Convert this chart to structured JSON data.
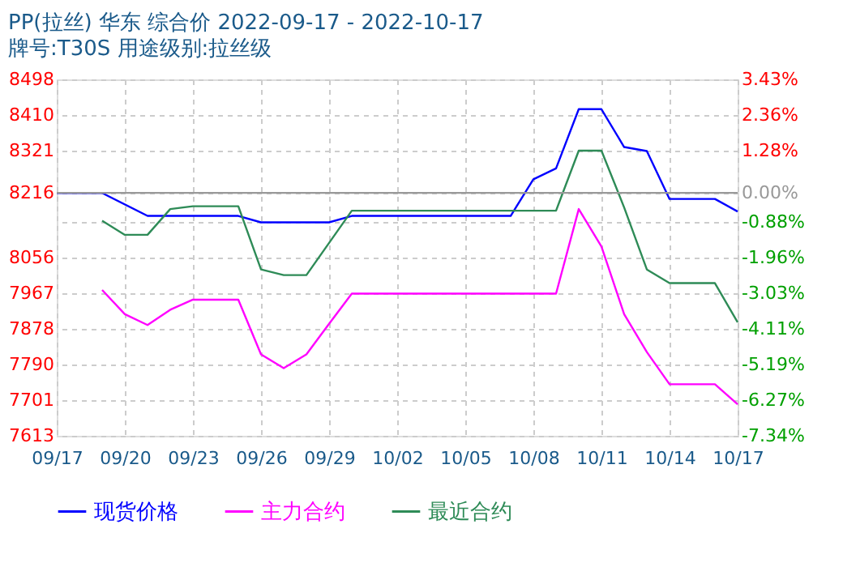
{
  "chart_data": {
    "type": "line",
    "title": "PP(拉丝) 华东 综合价 2022-09-17 - 2022-10-17",
    "subtitle": "牌号:T30S 用途级别:拉丝级",
    "series": [
      {
        "name": "现货价格",
        "color": "#0000ff",
        "x": [
          "2022-09-17",
          "2022-09-19",
          "2022-09-21",
          "2022-09-25",
          "2022-09-26",
          "2022-09-29",
          "2022-09-30",
          "2022-10-07",
          "2022-10-08",
          "2022-10-09",
          "2022-10-10",
          "2022-10-11",
          "2022-10-12",
          "2022-10-13",
          "2022-10-14",
          "2022-10-16",
          "2022-10-17"
        ],
        "values": [
          8216,
          8216,
          8159,
          8159,
          8143,
          8143,
          8159,
          8159,
          8250,
          8277,
          8424,
          8424,
          8330,
          8320,
          8201,
          8201,
          8170
        ]
      },
      {
        "name": "主力合约",
        "color": "#ff00ff",
        "x": [
          "2022-09-19",
          "2022-09-20",
          "2022-09-21",
          "2022-09-22",
          "2022-09-23",
          "2022-09-25",
          "2022-09-26",
          "2022-09-27",
          "2022-09-28",
          "2022-09-29",
          "2022-09-30",
          "2022-10-09",
          "2022-10-10",
          "2022-10-11",
          "2022-10-12",
          "2022-10-13",
          "2022-10-14",
          "2022-10-16",
          "2022-10-17"
        ],
        "values": [
          7975,
          7915,
          7888,
          7926,
          7951,
          7951,
          7815,
          7781,
          7815,
          7891,
          7966,
          7966,
          8176,
          8083,
          7915,
          7821,
          7741,
          7741,
          7691
        ]
      },
      {
        "name": "最近合约",
        "color": "#2e8b57",
        "x": [
          "2022-09-19",
          "2022-09-20",
          "2022-09-21",
          "2022-09-22",
          "2022-09-23",
          "2022-09-25",
          "2022-09-26",
          "2022-09-27",
          "2022-09-28",
          "2022-09-30",
          "2022-10-09",
          "2022-10-10",
          "2022-10-11",
          "2022-10-12",
          "2022-10-13",
          "2022-10-14",
          "2022-10-16",
          "2022-10-17"
        ],
        "values": [
          8147,
          8112,
          8112,
          8176,
          8183,
          8183,
          8026,
          8012,
          8012,
          8172,
          8172,
          8321,
          8321,
          8180,
          8026,
          7992,
          7992,
          7895
        ]
      }
    ],
    "xlim": [
      "2022-09-17",
      "2022-10-17"
    ],
    "xticks": [
      {
        "value": "2022-09-17",
        "label": "09/17"
      },
      {
        "value": "2022-09-20",
        "label": "09/20"
      },
      {
        "value": "2022-09-23",
        "label": "09/23"
      },
      {
        "value": "2022-09-26",
        "label": "09/26"
      },
      {
        "value": "2022-09-29",
        "label": "09/29"
      },
      {
        "value": "2022-10-02",
        "label": "10/02"
      },
      {
        "value": "2022-10-05",
        "label": "10/05"
      },
      {
        "value": "2022-10-08",
        "label": "10/08"
      },
      {
        "value": "2022-10-11",
        "label": "10/11"
      },
      {
        "value": "2022-10-14",
        "label": "10/14"
      },
      {
        "value": "2022-10-17",
        "label": "10/17"
      }
    ],
    "ylim": [
      7613,
      8498
    ],
    "yticks": [
      7613,
      7701,
      7790,
      7878,
      7967,
      8056,
      8216,
      8321,
      8410,
      8498
    ],
    "y2lim": [
      -7.34,
      3.43
    ],
    "y2ticks": [
      {
        "value": -7.34,
        "label": "-7.34%"
      },
      {
        "value": -6.27,
        "label": "-6.27%"
      },
      {
        "value": -5.19,
        "label": "-5.19%"
      },
      {
        "value": -4.11,
        "label": "-4.11%"
      },
      {
        "value": -3.03,
        "label": "-3.03%"
      },
      {
        "value": -1.96,
        "label": "-1.96%"
      },
      {
        "value": -0.88,
        "label": "-0.88%"
      },
      {
        "value": 0,
        "label": "0.00%"
      },
      {
        "value": 1.28,
        "label": "1.28%"
      },
      {
        "value": 2.36,
        "label": "2.36%"
      },
      {
        "value": 3.43,
        "label": "3.43%"
      }
    ],
    "ref_lines": [
      {
        "axis": "y2",
        "value": 0,
        "color": "#999999"
      }
    ],
    "grid": true,
    "legend": "bottom",
    "marker": "none",
    "line_style": "solid"
  }
}
